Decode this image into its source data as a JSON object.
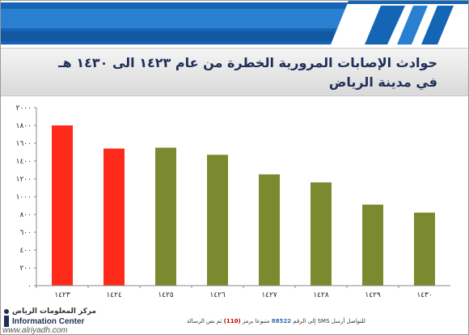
{
  "title": {
    "line1": "حوادث الإصابات المرورية الخطرة من عام ١٤٢٣ الى ١٤٣٠ هـ",
    "line2": "في مدينة الرياض"
  },
  "colors": {
    "red": "#ff2a1a",
    "green": "#7b8a2e",
    "header_blue": "#1565b5",
    "axis_text": "#222222"
  },
  "chart_data": {
    "type": "bar",
    "title": "حوادث الإصابات المرورية الخطرة من عام ١٤٢٣ الى ١٤٣٠ هـ في مدينة الرياض",
    "xlabel": "",
    "ylabel": "",
    "categories": [
      "١٤٢٣",
      "١٤٢٤",
      "١٤٢٥",
      "١٤٢٦",
      "١٤٢٧",
      "١٤٢٨",
      "١٤٢٩",
      "١٤٣٠"
    ],
    "values": [
      1800,
      1540,
      1550,
      1470,
      1250,
      1160,
      910,
      820
    ],
    "bar_colors": [
      "red",
      "red",
      "green",
      "green",
      "green",
      "green",
      "green",
      "green"
    ],
    "ylim": [
      0,
      2000
    ],
    "yticks": [
      0,
      200,
      400,
      600,
      800,
      1000,
      1200,
      1400,
      1600,
      1800,
      2000
    ],
    "ytick_labels": [
      "٠",
      "٢٠٠",
      "٤٠٠",
      "٦٠٠",
      "٨٠٠",
      "١٠٠٠",
      "١٢٠٠",
      "١٤٠٠",
      "١٦٠٠",
      "١٨٠٠",
      "٢٠٠٠"
    ],
    "grid": false,
    "legend": "none"
  },
  "footer": {
    "logo_ar": "مركز المعلومات الرياض",
    "logo_en": "Information Center",
    "sms_pre": "للتواصل أرسل SMS إلى الرقم",
    "sms_num": "88522",
    "sms_mid": "متبوعا برمز",
    "sms_code": "(110)",
    "sms_post": "ثم نص الرسالة",
    "watermark": "www.alriyadh.com"
  }
}
